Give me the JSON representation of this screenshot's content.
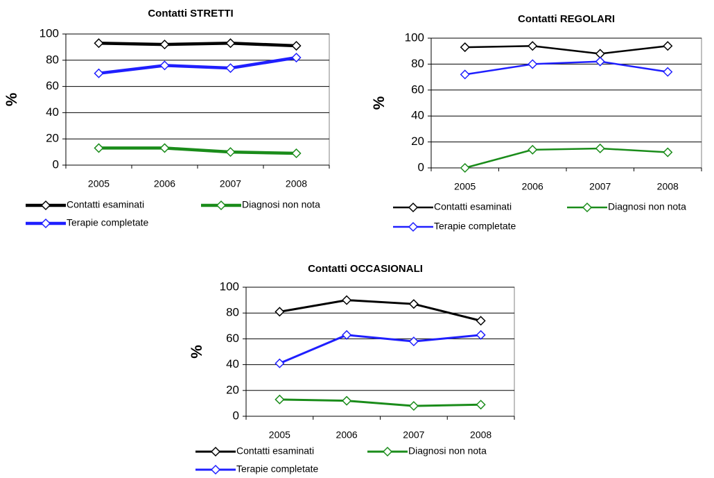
{
  "chart_data": [
    {
      "type": "line",
      "title": "Contatti STRETTI",
      "y_label": "%",
      "categories": [
        "2005",
        "2006",
        "2007",
        "2008"
      ],
      "series": [
        {
          "name": "Contatti esaminati",
          "color": "#000000",
          "values": [
            93,
            92,
            93,
            91
          ]
        },
        {
          "name": "Diagnosi non nota",
          "color": "#1a8c1a",
          "values": [
            13,
            13,
            10,
            9
          ]
        },
        {
          "name": "Terapie completate",
          "color": "#1f1fff",
          "values": [
            70,
            76,
            74,
            82
          ]
        }
      ],
      "ylim": [
        0,
        100
      ],
      "yticks": [
        0,
        20,
        40,
        60,
        80,
        100
      ],
      "grid": true
    },
    {
      "type": "line",
      "title": "Contatti REGOLARI",
      "y_label": "%",
      "categories": [
        "2005",
        "2006",
        "2007",
        "2008"
      ],
      "series": [
        {
          "name": "Contatti esaminati",
          "color": "#000000",
          "values": [
            93,
            94,
            88,
            94
          ]
        },
        {
          "name": "Diagnosi non nota",
          "color": "#1a8c1a",
          "values": [
            0,
            14,
            15,
            12
          ]
        },
        {
          "name": "Terapie completate",
          "color": "#1f1fff",
          "values": [
            72,
            80,
            82,
            74
          ]
        }
      ],
      "ylim": [
        0,
        100
      ],
      "yticks": [
        0,
        20,
        40,
        60,
        80,
        100
      ],
      "grid": true
    },
    {
      "type": "line",
      "title": "Contatti OCCASIONALI",
      "y_label": "%",
      "categories": [
        "2005",
        "2006",
        "2007",
        "2008"
      ],
      "series": [
        {
          "name": "Contatti esaminati",
          "color": "#000000",
          "values": [
            81,
            90,
            87,
            74
          ]
        },
        {
          "name": "Diagnosi non nota",
          "color": "#1a8c1a",
          "values": [
            13,
            12,
            8,
            9
          ]
        },
        {
          "name": "Terapie completate",
          "color": "#1f1fff",
          "values": [
            41,
            63,
            58,
            63
          ]
        }
      ],
      "ylim": [
        0,
        100
      ],
      "yticks": [
        0,
        20,
        40,
        60,
        80,
        100
      ],
      "grid": true
    }
  ]
}
